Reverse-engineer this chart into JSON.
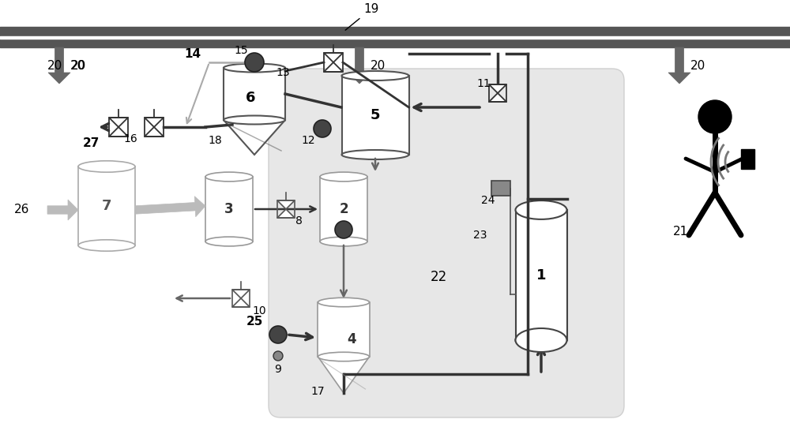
{
  "bg_color": "#ffffff",
  "niche_bg": "#e5e5e5",
  "dark_gray": "#333333",
  "med_gray": "#666666",
  "light_gray": "#aaaaaa",
  "very_light_gray": "#cccccc",
  "fig_width": 10.0,
  "fig_height": 5.36
}
